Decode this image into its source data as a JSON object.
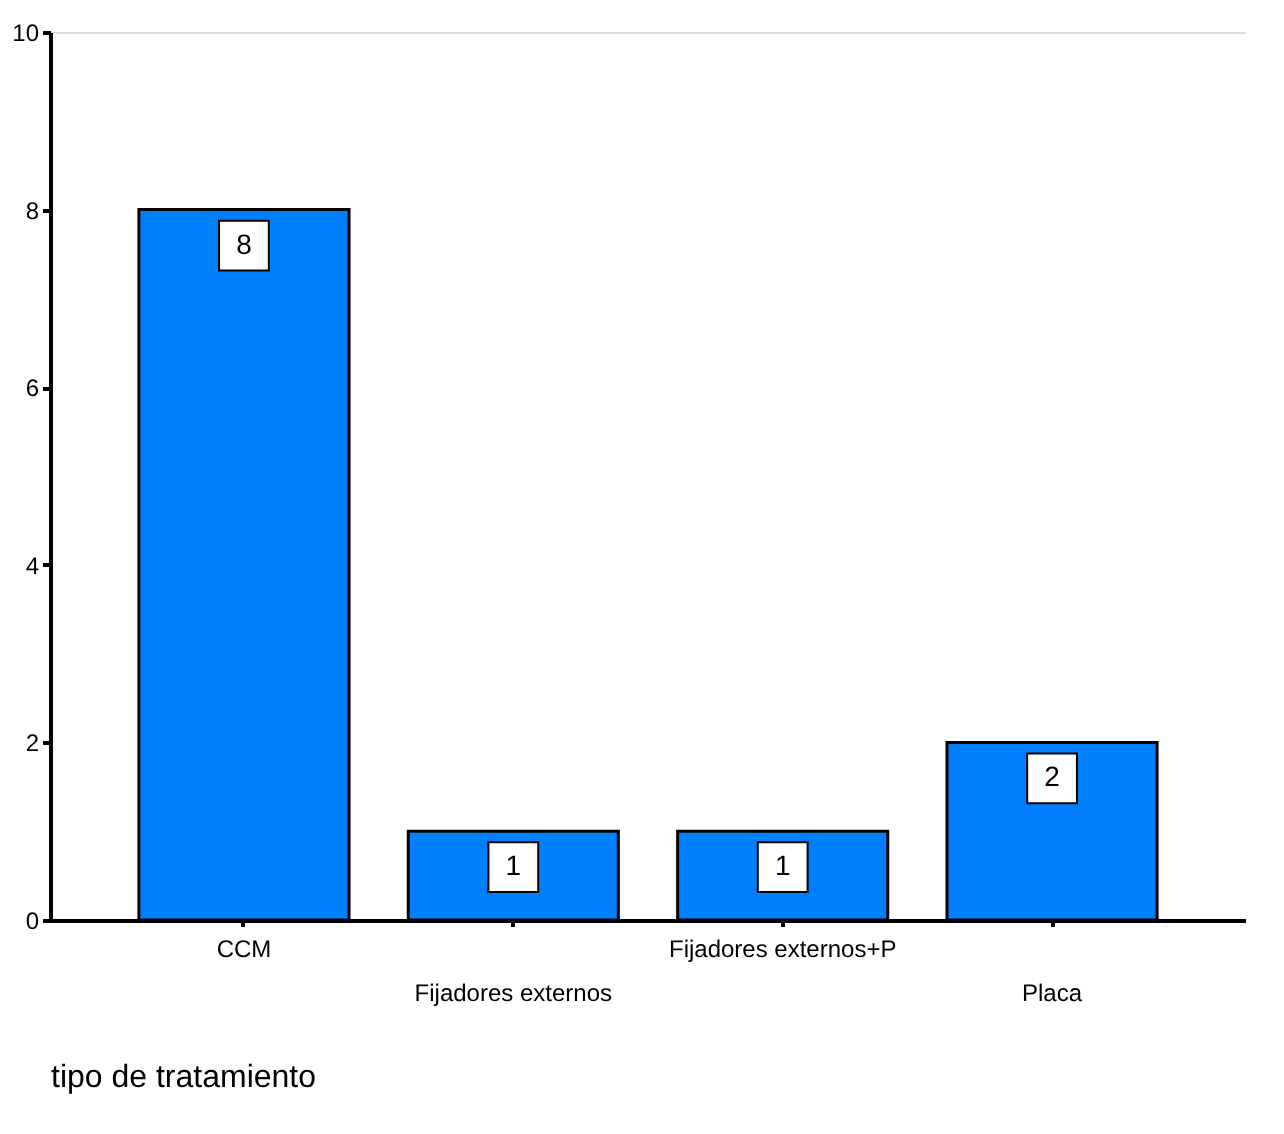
{
  "chart_data": {
    "type": "bar",
    "xlabel": "tipo de tratamiento",
    "categories": [
      "CCM",
      "Fijadores externos",
      "Fijadores externos+P",
      "Placa"
    ],
    "values": [
      8,
      1,
      1,
      2
    ],
    "color": "#0080ff",
    "ylim": [
      0,
      10
    ],
    "yticks": [
      0,
      2,
      4,
      6,
      8,
      10
    ],
    "grid": false,
    "data_labels": true
  }
}
